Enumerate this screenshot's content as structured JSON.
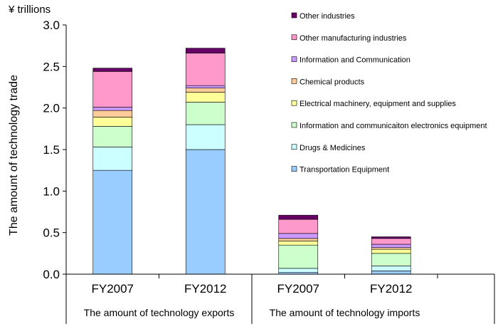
{
  "colors": {
    "Transportation Equipment": "#99ccff",
    "Drugs & Medicines": "#ccffff",
    "Information and communicaiton electronics equipment": "#ccffcc",
    "Electrical machinery, equipment and supplies": "#ffff99",
    "Chemical products": "#ffcc99",
    "Information and Communication": "#cc99ff",
    "Other manufacturing industries": "#ff99cc",
    "Other industries": "#660066"
  },
  "chart_data": {
    "type": "bar",
    "stacked": true,
    "unit_label": "¥ trillions",
    "ylabel": "The amount of technology trade",
    "ylim": [
      0,
      3.0
    ],
    "yticks": [
      "0.0",
      "0.5",
      "1.0",
      "1.5",
      "2.0",
      "2.5",
      "3.0"
    ],
    "grid": false,
    "legend_position": "top-right",
    "categories": [
      "FY2007",
      "FY2012",
      "FY2007",
      "FY2012"
    ],
    "groups": [
      {
        "label": "The amount of technology exports",
        "categories": [
          0,
          1
        ]
      },
      {
        "label": "The amount of technology imports",
        "categories": [
          2,
          3
        ]
      }
    ],
    "series": [
      {
        "name": "Transportation Equipment",
        "values": [
          1.25,
          1.5,
          0.02,
          0.04
        ]
      },
      {
        "name": "Drugs & Medicines",
        "values": [
          0.28,
          0.3,
          0.05,
          0.06
        ]
      },
      {
        "name": "Information and communicaiton electronics equipment",
        "values": [
          0.25,
          0.27,
          0.28,
          0.15
        ]
      },
      {
        "name": "Electrical machinery, equipment and supplies",
        "values": [
          0.11,
          0.12,
          0.05,
          0.05
        ]
      },
      {
        "name": "Chemical products",
        "values": [
          0.08,
          0.05,
          0.03,
          0.02
        ]
      },
      {
        "name": "Information and Communication",
        "values": [
          0.04,
          0.03,
          0.06,
          0.04
        ]
      },
      {
        "name": "Other manufacturing industries",
        "values": [
          0.43,
          0.39,
          0.17,
          0.07
        ]
      },
      {
        "name": "Other industries",
        "values": [
          0.04,
          0.06,
          0.05,
          0.02
        ]
      }
    ]
  }
}
